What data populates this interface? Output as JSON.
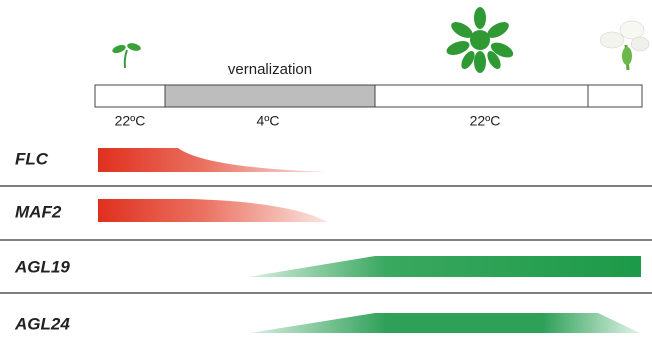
{
  "timeline": {
    "label": "vernalization",
    "temperatures": [
      "22ºC",
      "4ºC",
      "22ºC"
    ]
  },
  "genes": [
    "FLC",
    "MAF2",
    "AGL19",
    "AGL24"
  ]
}
